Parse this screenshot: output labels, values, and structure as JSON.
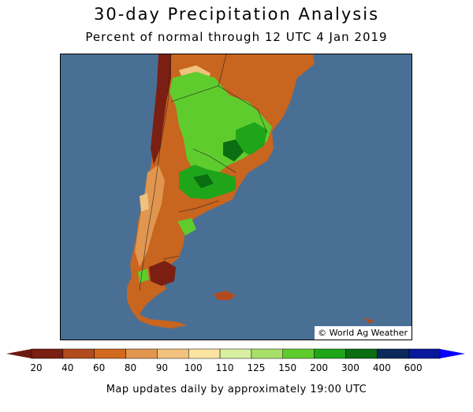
{
  "title": "30-day Precipitation Analysis",
  "subtitle": "Percent of normal through 12 UTC 4 Jan 2019",
  "credit": "© World Ag Weather",
  "footer": "Map updates daily by approximately 19:00 UTC",
  "legend": {
    "labels": [
      "20",
      "40",
      "60",
      "80",
      "90",
      "100",
      "110",
      "125",
      "150",
      "200",
      "300",
      "400",
      "600"
    ],
    "colors": [
      "#7a1f12",
      "#b14a1d",
      "#d2691e",
      "#e0964f",
      "#f1c27d",
      "#fbe3a0",
      "#d6f0a0",
      "#a8e06a",
      "#5fcc2e",
      "#1fa51a",
      "#0b6e12",
      "#0a2a5c",
      "#08189a"
    ],
    "left_arrow_color": "#6b1a10",
    "right_arrow_color": "#0a00ff"
  },
  "map": {
    "ocean_color": "#4a6f95",
    "land_colors": {
      "very_dry": "#7a1f12",
      "dry": "#b14a1d",
      "moderately_dry": "#d2691e",
      "slightly_dry": "#e0964f",
      "near_normal": "#f1c27d",
      "wet": "#5fcc2e",
      "very_wet": "#1fa51a",
      "extremely_wet": "#0b6e12"
    }
  }
}
